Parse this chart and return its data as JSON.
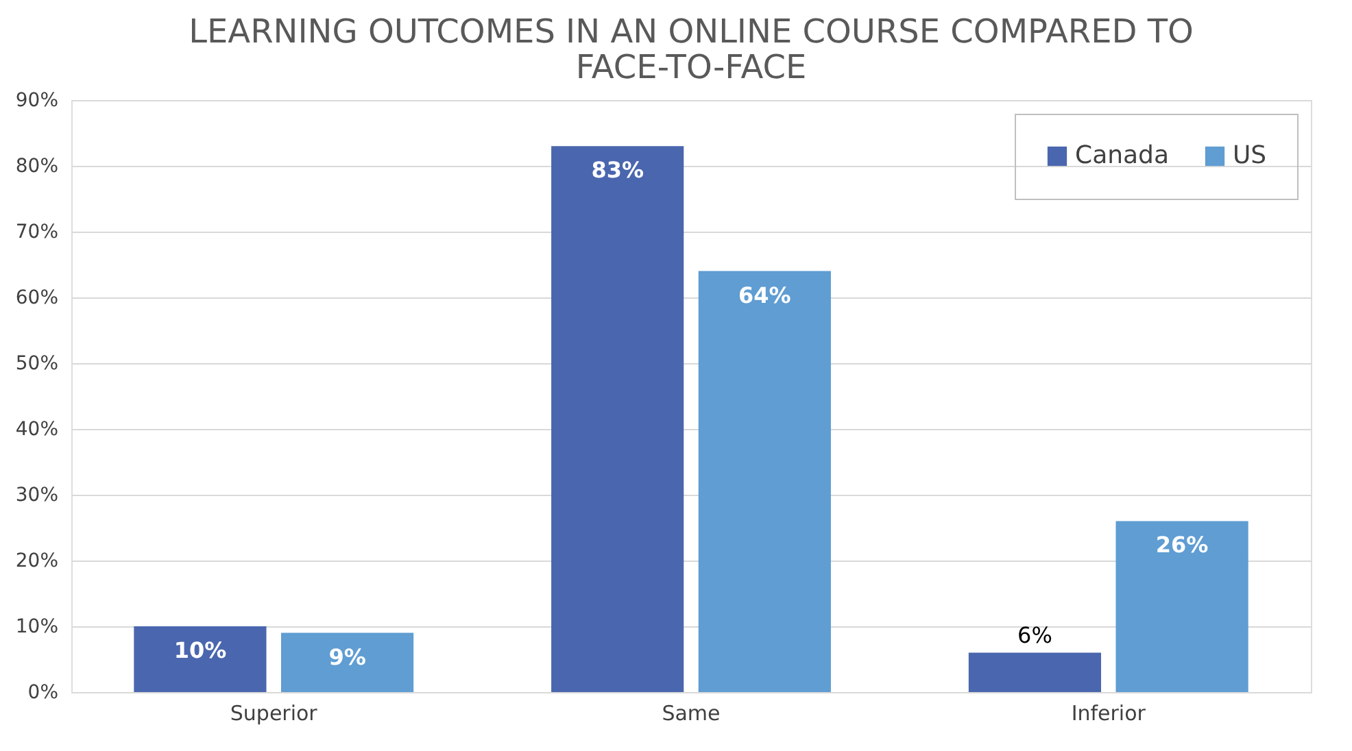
{
  "chart_data": {
    "type": "bar",
    "title": "LEARNING OUTCOMES IN AN ONLINE COURSE COMPARED TO FACE-TO-FACE",
    "categories": [
      "Superior",
      "Same",
      "Inferior"
    ],
    "series": [
      {
        "name": "Canada",
        "color": "#4a66ae",
        "values": [
          10,
          83,
          6
        ],
        "value_labels": [
          "10%",
          "83%",
          "6%"
        ]
      },
      {
        "name": "US",
        "color": "#5f9dd3",
        "values": [
          9,
          64,
          26
        ],
        "value_labels": [
          "9%",
          "64%",
          "26%"
        ]
      }
    ],
    "ylim": [
      0,
      90
    ],
    "yticks": [
      {
        "value": 0,
        "label": "0%"
      },
      {
        "value": 10,
        "label": "10%"
      },
      {
        "value": 20,
        "label": "20%"
      },
      {
        "value": 30,
        "label": "30%"
      },
      {
        "value": 40,
        "label": "40%"
      },
      {
        "value": 50,
        "label": "50%"
      },
      {
        "value": 60,
        "label": "60%"
      },
      {
        "value": 70,
        "label": "70%"
      },
      {
        "value": 80,
        "label": "80%"
      },
      {
        "value": 90,
        "label": "90%"
      }
    ],
    "grid": "y",
    "legend": "top right"
  }
}
